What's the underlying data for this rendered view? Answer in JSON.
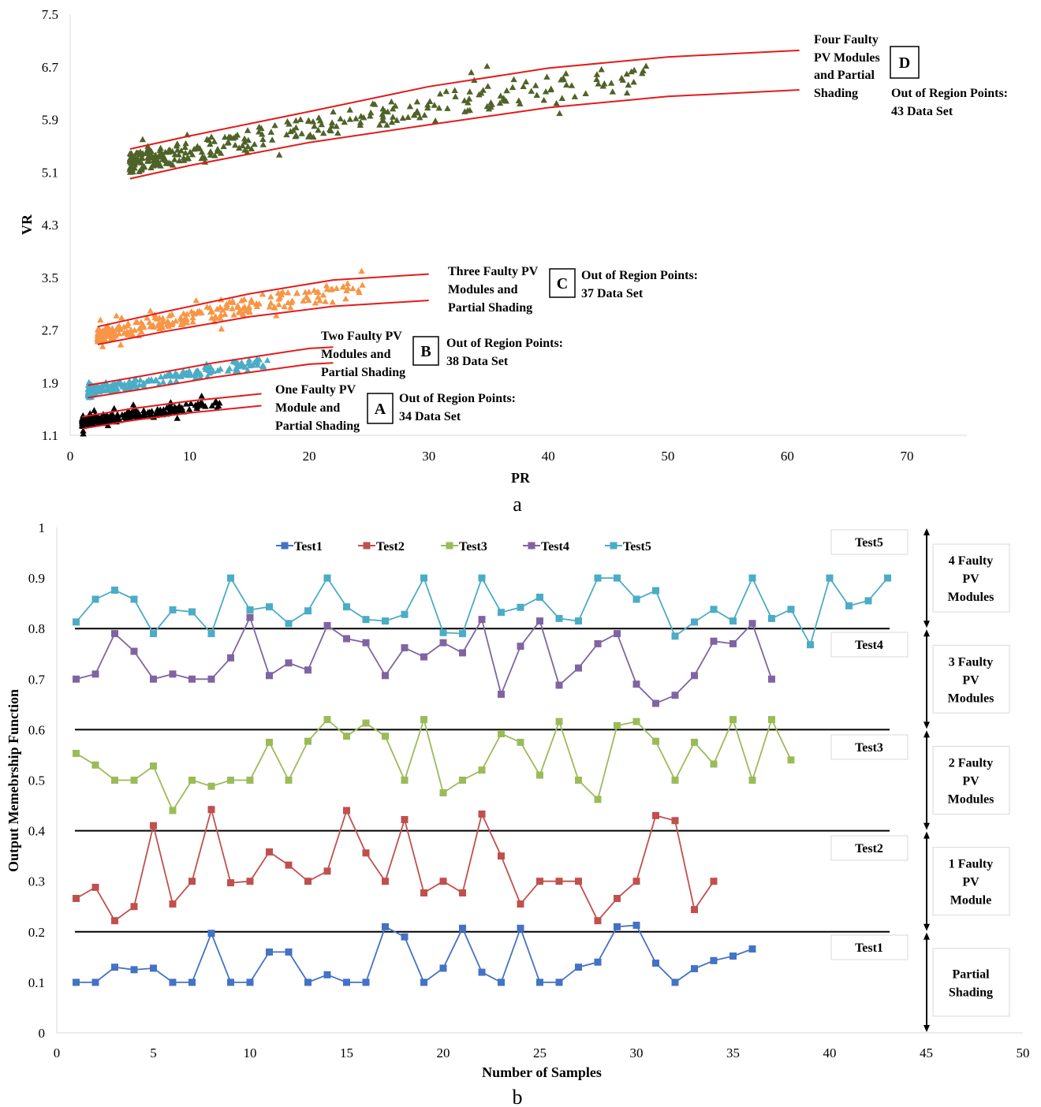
{
  "chart_data": [
    {
      "type": "scatter",
      "panel_label": "a",
      "xlabel": "PR",
      "ylabel": "VR",
      "xlim": [
        0,
        70
      ],
      "ylim": [
        1.1,
        7.5
      ],
      "x_ticks": [
        "0",
        "10",
        "20",
        "30",
        "40",
        "50",
        "60",
        "70"
      ],
      "y_ticks": [
        "1.1",
        "1.9",
        "2.7",
        "3.5",
        "4.3",
        "5.1",
        "5.9",
        "6.7",
        "7.5"
      ],
      "grid": false,
      "regions": [
        {
          "id": "A",
          "color": "#000000",
          "label_lines": [
            "One Faulty PV",
            "Module and",
            "Partial Shading"
          ],
          "out_of_region_lines": [
            "Out of Region Points:",
            "34 Data Set"
          ],
          "pr_range": [
            1,
            12.5
          ],
          "vr_start": 1.28,
          "vr_end": 1.7,
          "upper_boundary": [
            [
              1,
              1.38
            ],
            [
              5,
              1.5
            ],
            [
              10,
              1.62
            ],
            [
              16,
              1.73
            ]
          ],
          "lower_boundary": [
            [
              1,
              1.2
            ],
            [
              5,
              1.32
            ],
            [
              10,
              1.44
            ],
            [
              16,
              1.55
            ]
          ]
        },
        {
          "id": "B",
          "color": "#4bacc6",
          "label_lines": [
            "Two Faulty PV",
            "Modules and",
            "Partial Shading"
          ],
          "out_of_region_lines": [
            "Out of Region Points:",
            "38 Data Set"
          ],
          "pr_range": [
            1.5,
            16.5
          ],
          "vr_start": 1.75,
          "vr_end": 2.4,
          "upper_boundary": [
            [
              1.5,
              1.86
            ],
            [
              6,
              2.0
            ],
            [
              12,
              2.2
            ],
            [
              20,
              2.42
            ],
            [
              22,
              2.44
            ]
          ],
          "lower_boundary": [
            [
              1.5,
              1.67
            ],
            [
              6,
              1.8
            ],
            [
              12,
              1.98
            ],
            [
              20,
              2.18
            ],
            [
              22,
              2.2
            ]
          ]
        },
        {
          "id": "C",
          "color": "#f79646",
          "label_lines": [
            "Three Faulty PV",
            "Modules and",
            "Partial Shading"
          ],
          "out_of_region_lines": [
            "Out of Region Points:",
            "37 Data Set"
          ],
          "pr_range": [
            2.3,
            25
          ],
          "vr_start": 2.6,
          "vr_end": 3.3,
          "upper_boundary": [
            [
              2.3,
              2.75
            ],
            [
              8,
              2.98
            ],
            [
              15,
              3.25
            ],
            [
              22,
              3.46
            ],
            [
              30,
              3.55
            ]
          ],
          "lower_boundary": [
            [
              2.3,
              2.48
            ],
            [
              8,
              2.68
            ],
            [
              15,
              2.9
            ],
            [
              22,
              3.06
            ],
            [
              30,
              3.15
            ]
          ]
        },
        {
          "id": "D",
          "color": "#4f6228",
          "label_lines": [
            "Four Faulty",
            "PV Modules",
            "and Partial",
            "Shading"
          ],
          "out_of_region_lines": [
            "Out of Region Points:",
            "43 Data Set"
          ],
          "pr_range": [
            5,
            48.5
          ],
          "vr_start": 5.2,
          "vr_end": 6.8,
          "upper_boundary": [
            [
              5,
              5.45
            ],
            [
              10,
              5.65
            ],
            [
              20,
              6.02
            ],
            [
              30,
              6.4
            ],
            [
              40,
              6.68
            ],
            [
              50,
              6.85
            ],
            [
              61,
              6.95
            ]
          ],
          "lower_boundary": [
            [
              5,
              5.0
            ],
            [
              10,
              5.2
            ],
            [
              20,
              5.55
            ],
            [
              30,
              5.82
            ],
            [
              40,
              6.08
            ],
            [
              50,
              6.25
            ],
            [
              61,
              6.35
            ]
          ]
        }
      ]
    },
    {
      "type": "line",
      "panel_label": "b",
      "xlabel": "Number of Samples",
      "ylabel": "Output Memebrship Function",
      "xlim": [
        0,
        50
      ],
      "ylim": [
        0,
        1
      ],
      "x_ticks": [
        "0",
        "5",
        "10",
        "15",
        "20",
        "25",
        "30",
        "35",
        "40",
        "45",
        "50"
      ],
      "y_ticks": [
        "0",
        "0.1",
        "0.2",
        "0.3",
        "0.4",
        "0.5",
        "0.6",
        "0.7",
        "0.8",
        "0.9",
        "1"
      ],
      "grid": false,
      "legend_position": "top",
      "thresholds": [
        0.2,
        0.4,
        0.6,
        0.8
      ],
      "series": [
        {
          "name": "Test1",
          "color": "#4472c4",
          "values": [
            0.1,
            0.1,
            0.13,
            0.125,
            0.128,
            0.1,
            0.1,
            0.197,
            0.1,
            0.1,
            0.16,
            0.16,
            0.1,
            0.115,
            0.1,
            0.1,
            0.21,
            0.19,
            0.1,
            0.128,
            0.207,
            0.12,
            0.1,
            0.207,
            0.1,
            0.1,
            0.13,
            0.14,
            0.21,
            0.213,
            0.138,
            0.1,
            0.127,
            0.143,
            0.152,
            0.166
          ]
        },
        {
          "name": "Test2",
          "color": "#c0504d",
          "values": [
            0.266,
            0.288,
            0.222,
            0.25,
            0.41,
            0.255,
            0.3,
            0.442,
            0.297,
            0.3,
            0.358,
            0.332,
            0.3,
            0.32,
            0.44,
            0.356,
            0.3,
            0.422,
            0.277,
            0.3,
            0.277,
            0.433,
            0.35,
            0.255,
            0.3,
            0.3,
            0.3,
            0.222,
            0.266,
            0.3,
            0.43,
            0.42,
            0.244,
            0.3
          ]
        },
        {
          "name": "Test3",
          "color": "#9bbb59",
          "values": [
            0.553,
            0.53,
            0.5,
            0.5,
            0.528,
            0.44,
            0.5,
            0.488,
            0.5,
            0.5,
            0.575,
            0.5,
            0.577,
            0.62,
            0.587,
            0.613,
            0.587,
            0.5,
            0.62,
            0.475,
            0.5,
            0.52,
            0.592,
            0.575,
            0.51,
            0.616,
            0.5,
            0.462,
            0.608,
            0.616,
            0.577,
            0.5,
            0.575,
            0.532,
            0.62,
            0.5,
            0.62,
            0.54
          ]
        },
        {
          "name": "Test4",
          "color": "#8064a2",
          "values": [
            0.7,
            0.71,
            0.79,
            0.755,
            0.7,
            0.71,
            0.7,
            0.7,
            0.742,
            0.822,
            0.707,
            0.732,
            0.718,
            0.806,
            0.78,
            0.772,
            0.707,
            0.762,
            0.744,
            0.772,
            0.752,
            0.818,
            0.67,
            0.765,
            0.815,
            0.688,
            0.722,
            0.77,
            0.79,
            0.69,
            0.652,
            0.668,
            0.707,
            0.775,
            0.77,
            0.81,
            0.7
          ]
        },
        {
          "name": "Test5",
          "color": "#4bacc6",
          "values": [
            0.813,
            0.858,
            0.876,
            0.858,
            0.79,
            0.837,
            0.833,
            0.79,
            0.9,
            0.837,
            0.843,
            0.81,
            0.835,
            0.9,
            0.843,
            0.818,
            0.815,
            0.828,
            0.9,
            0.792,
            0.79,
            0.9,
            0.832,
            0.842,
            0.862,
            0.82,
            0.815,
            0.9,
            0.9,
            0.858,
            0.875,
            0.785,
            0.813,
            0.838,
            0.815,
            0.9,
            0.82,
            0.838,
            0.768,
            0.9,
            0.845,
            0.855,
            0.9
          ]
        }
      ],
      "right_labels": [
        "Test5",
        "Test4",
        "Test3",
        "Test2",
        "Test1"
      ],
      "category_boxes": [
        {
          "lines": [
            "4 Faulty",
            "PV",
            "Modules"
          ],
          "range": [
            0.8,
            1.0
          ]
        },
        {
          "lines": [
            "3 Faulty",
            "PV",
            "Modules"
          ],
          "range": [
            0.6,
            0.8
          ]
        },
        {
          "lines": [
            "2 Faulty",
            "PV",
            "Modules"
          ],
          "range": [
            0.4,
            0.6
          ]
        },
        {
          "lines": [
            "1 Faulty",
            "PV",
            "Module"
          ],
          "range": [
            0.2,
            0.4
          ]
        },
        {
          "lines": [
            "Partial",
            "Shading"
          ],
          "range": [
            0.0,
            0.2
          ]
        }
      ]
    }
  ]
}
